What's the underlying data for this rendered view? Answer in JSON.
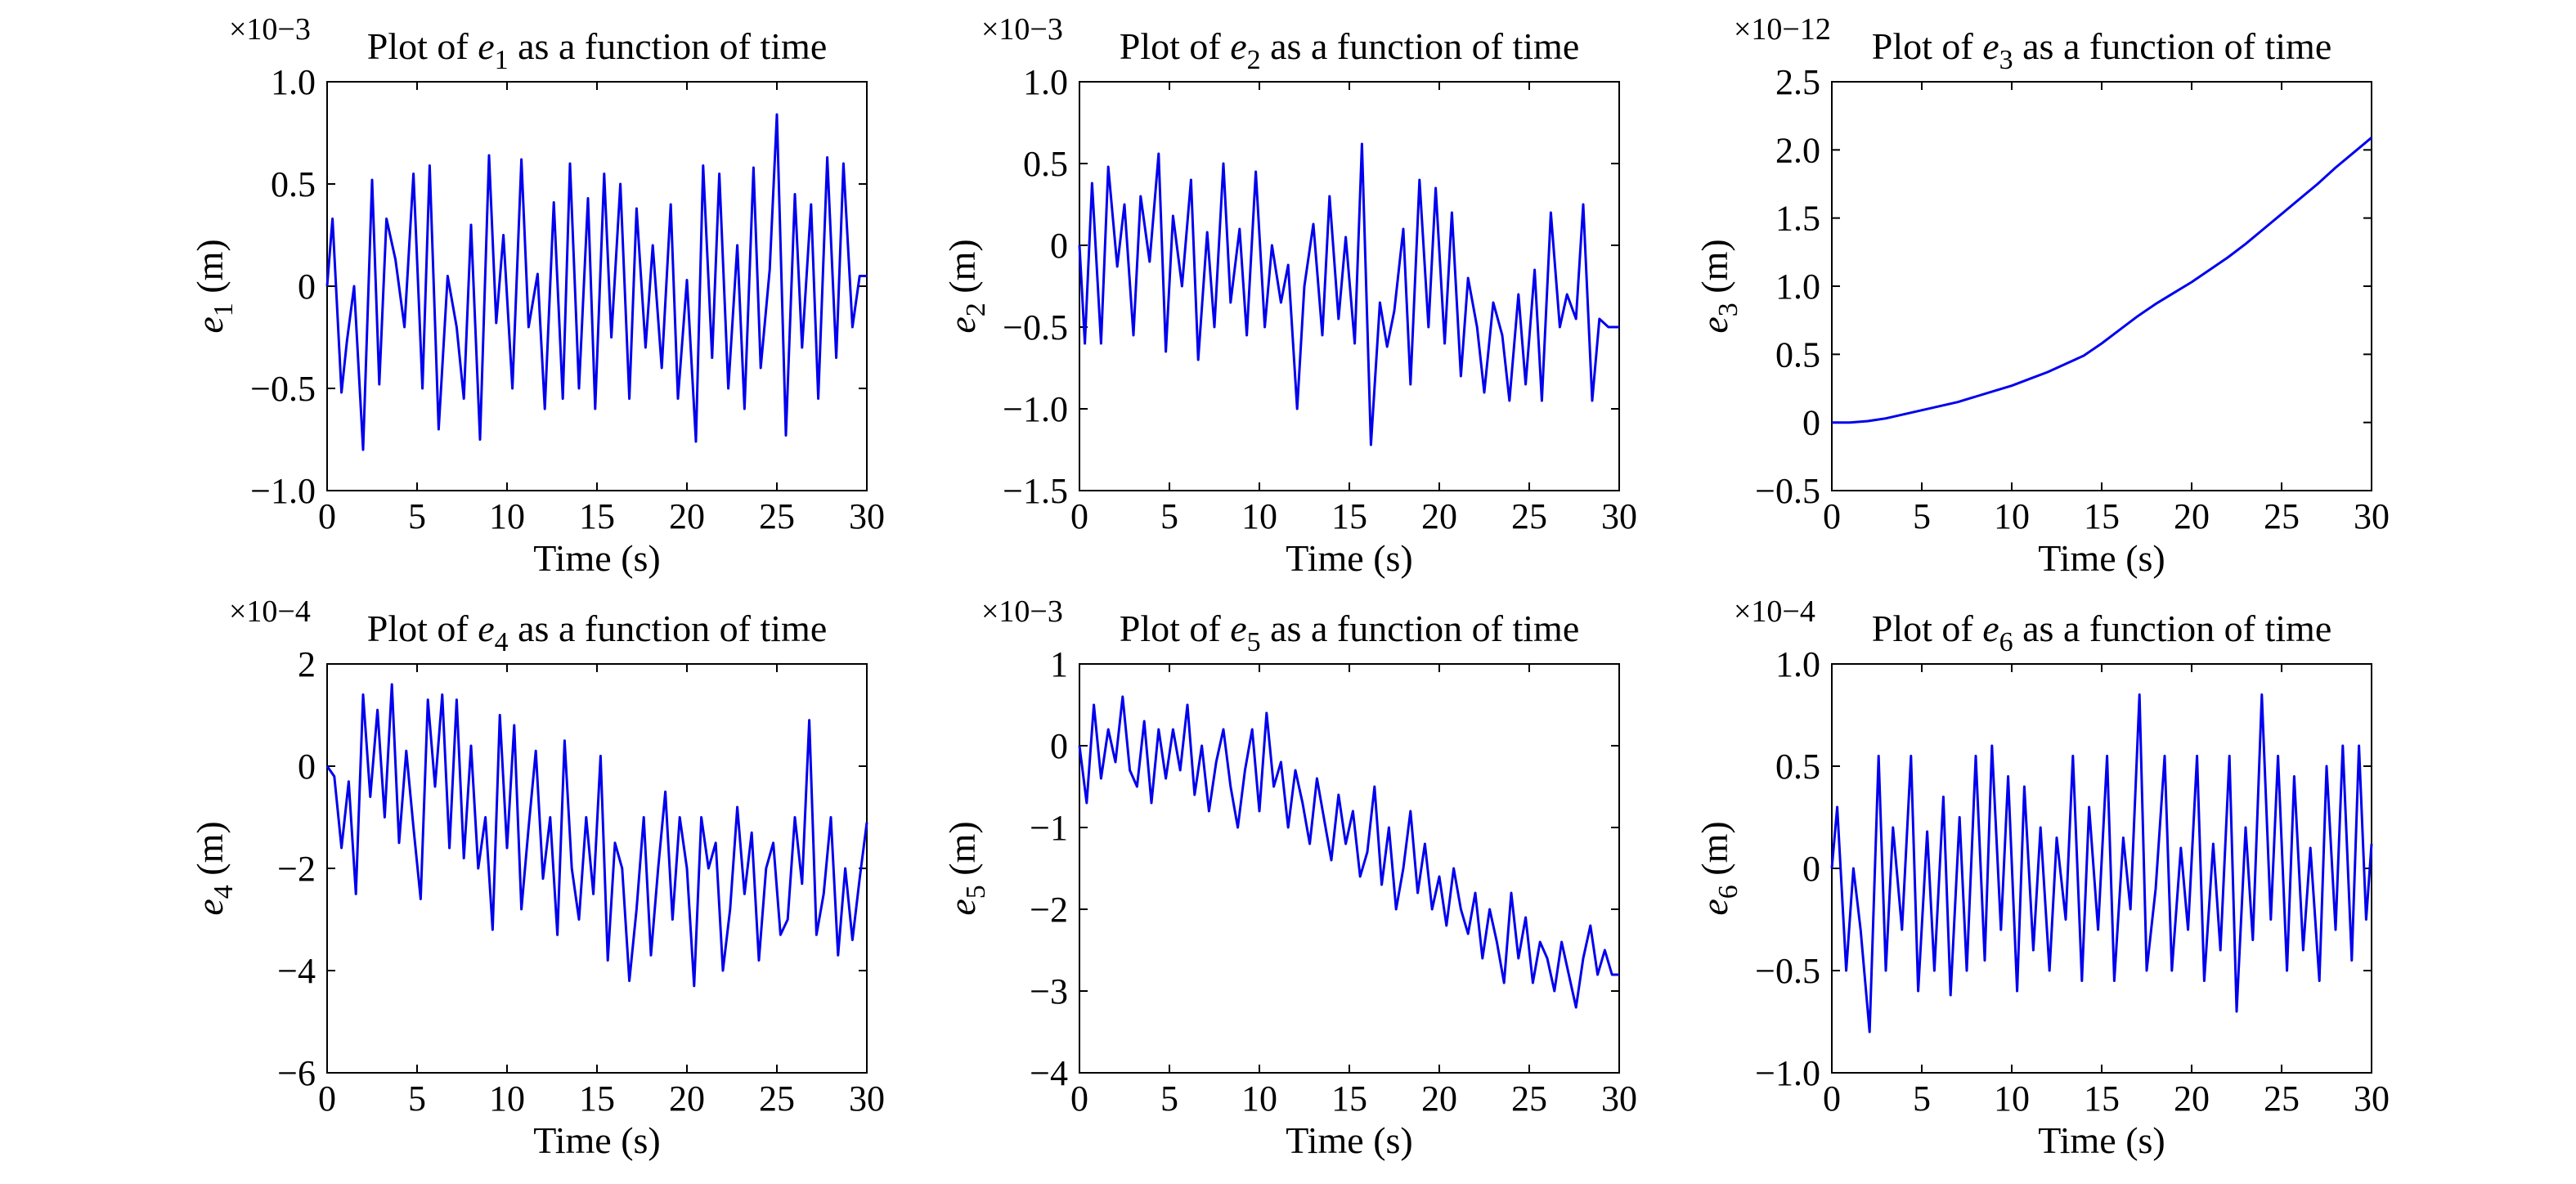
{
  "figure": {
    "line_color": "#0000EE",
    "subplot_titles": [
      [
        "Plot of ",
        "e",
        "1",
        " as a function of time"
      ],
      [
        "Plot of ",
        "e",
        "2",
        " as a function of time"
      ],
      [
        "Plot of ",
        "e",
        "3",
        " as a function of time"
      ],
      [
        "Plot of ",
        "e",
        "4",
        " as a function of time"
      ],
      [
        "Plot of ",
        "e",
        "5",
        " as a function of time"
      ],
      [
        "Plot of ",
        "e",
        "6",
        " as a function of time"
      ]
    ]
  },
  "chart_data": [
    {
      "type": "line",
      "title": "Plot of e1 as a function of time",
      "xlabel": "Time (s)",
      "ylabel": "e1 (m)",
      "y_multiplier": "×10−3",
      "xlim": [
        0,
        30
      ],
      "ylim": [
        -1.0,
        1.0
      ],
      "xticks": [
        0,
        5,
        10,
        15,
        20,
        25,
        30
      ],
      "xtick_labels": [
        "0",
        "5",
        "10",
        "15",
        "20",
        "25",
        "30"
      ],
      "yticks": [
        -1.0,
        -0.5,
        0,
        0.5,
        1.0
      ],
      "ytick_labels": [
        "−1.0",
        "−0.5",
        "0",
        "0.5",
        "1.0"
      ],
      "grid": false,
      "series": [
        {
          "color": "#0000EE",
          "x": [
            0,
            0.3,
            0.8,
            1.1,
            1.5,
            2.0,
            2.5,
            2.9,
            3.3,
            3.8,
            4.3,
            4.8,
            5.3,
            5.7,
            6.2,
            6.7,
            7.2,
            7.6,
            8.0,
            8.5,
            9.0,
            9.4,
            9.8,
            10.3,
            10.8,
            11.2,
            11.7,
            12.1,
            12.6,
            13.1,
            13.5,
            14.0,
            14.5,
            14.9,
            15.4,
            15.8,
            16.3,
            16.8,
            17.2,
            17.7,
            18.1,
            18.6,
            19.1,
            19.5,
            20.0,
            20.5,
            20.9,
            21.4,
            21.8,
            22.3,
            22.8,
            23.2,
            23.7,
            24.1,
            24.6,
            25.0,
            25.5,
            26.0,
            26.4,
            26.9,
            27.3,
            27.8,
            28.3,
            28.7,
            29.2,
            29.6,
            30
          ],
          "y": [
            0.0,
            0.33,
            -0.52,
            -0.27,
            0.0,
            -0.8,
            0.52,
            -0.48,
            0.33,
            0.13,
            -0.2,
            0.55,
            -0.5,
            0.59,
            -0.7,
            0.05,
            -0.2,
            -0.55,
            0.3,
            -0.75,
            0.64,
            -0.18,
            0.25,
            -0.5,
            0.62,
            -0.2,
            0.06,
            -0.6,
            0.41,
            -0.55,
            0.6,
            -0.5,
            0.43,
            -0.6,
            0.55,
            -0.25,
            0.5,
            -0.55,
            0.38,
            -0.3,
            0.2,
            -0.4,
            0.4,
            -0.55,
            0.03,
            -0.76,
            0.59,
            -0.35,
            0.55,
            -0.5,
            0.2,
            -0.6,
            0.58,
            -0.4,
            0.08,
            0.84,
            -0.73,
            0.45,
            -0.3,
            0.4,
            -0.55,
            0.63,
            -0.35,
            0.6,
            -0.2,
            0.05,
            0.05
          ]
        }
      ]
    },
    {
      "type": "line",
      "title": "Plot of e2 as a function of time",
      "xlabel": "Time (s)",
      "ylabel": "e2 (m)",
      "y_multiplier": "×10−3",
      "xlim": [
        0,
        30
      ],
      "ylim": [
        -1.5,
        1.0
      ],
      "xticks": [
        0,
        5,
        10,
        15,
        20,
        25,
        30
      ],
      "xtick_labels": [
        "0",
        "5",
        "10",
        "15",
        "20",
        "25",
        "30"
      ],
      "yticks": [
        -1.5,
        -1.0,
        -0.5,
        0,
        0.5,
        1.0
      ],
      "ytick_labels": [
        "−1.5",
        "−1.0",
        "−0.5",
        "0",
        "0.5",
        "1.0"
      ],
      "grid": false,
      "series": [
        {
          "color": "#0000EE",
          "x": [
            0,
            0.3,
            0.7,
            1.2,
            1.6,
            2.1,
            2.5,
            3.0,
            3.4,
            3.9,
            4.4,
            4.8,
            5.2,
            5.7,
            6.2,
            6.6,
            7.1,
            7.5,
            8.0,
            8.4,
            8.9,
            9.3,
            9.8,
            10.3,
            10.7,
            11.2,
            11.6,
            12.1,
            12.5,
            13.0,
            13.5,
            13.9,
            14.4,
            14.8,
            15.3,
            15.7,
            16.2,
            16.7,
            17.1,
            17.5,
            18.0,
            18.4,
            18.9,
            19.4,
            19.8,
            20.3,
            20.7,
            21.2,
            21.6,
            22.1,
            22.5,
            23.0,
            23.5,
            23.9,
            24.4,
            24.8,
            25.3,
            25.7,
            26.2,
            26.7,
            27.1,
            27.6,
            28.0,
            28.5,
            28.9,
            29.4,
            29.8,
            30
          ],
          "y": [
            0.0,
            -0.6,
            0.38,
            -0.6,
            0.48,
            -0.13,
            0.25,
            -0.55,
            0.3,
            -0.1,
            0.56,
            -0.65,
            0.18,
            -0.25,
            0.4,
            -0.7,
            0.08,
            -0.5,
            0.5,
            -0.35,
            0.1,
            -0.55,
            0.45,
            -0.5,
            0.0,
            -0.35,
            -0.12,
            -1.0,
            -0.25,
            0.13,
            -0.55,
            0.3,
            -0.45,
            0.05,
            -0.6,
            0.62,
            -1.22,
            -0.35,
            -0.62,
            -0.4,
            0.1,
            -0.85,
            0.4,
            -0.5,
            0.35,
            -0.6,
            0.2,
            -0.8,
            -0.2,
            -0.5,
            -0.9,
            -0.35,
            -0.55,
            -0.95,
            -0.3,
            -0.85,
            -0.15,
            -0.95,
            0.2,
            -0.5,
            -0.3,
            -0.45,
            0.25,
            -0.95,
            -0.45,
            -0.5,
            -0.5,
            -0.5
          ]
        }
      ]
    },
    {
      "type": "line",
      "title": "Plot of e3 as a function of time",
      "xlabel": "Time (s)",
      "ylabel": "e3 (m)",
      "y_multiplier": "×10−12",
      "xlim": [
        0,
        30
      ],
      "ylim": [
        -0.5,
        2.5
      ],
      "xticks": [
        0,
        5,
        10,
        15,
        20,
        25,
        30
      ],
      "xtick_labels": [
        "0",
        "5",
        "10",
        "15",
        "20",
        "25",
        "30"
      ],
      "yticks": [
        -0.5,
        0,
        0.5,
        1.0,
        1.5,
        2.0,
        2.5
      ],
      "ytick_labels": [
        "−0.5",
        "0",
        "0.5",
        "1.0",
        "1.5",
        "2.0",
        "2.5"
      ],
      "grid": false,
      "series": [
        {
          "color": "#0000EE",
          "x": [
            0,
            1,
            2,
            3,
            4,
            5,
            6,
            7,
            8,
            9,
            10,
            11,
            12,
            13,
            14,
            15,
            16,
            17,
            18,
            19,
            20,
            21,
            22,
            23,
            24,
            25,
            26,
            27,
            28,
            29,
            30
          ],
          "y": [
            0.0,
            0.0,
            0.01,
            0.03,
            0.06,
            0.09,
            0.12,
            0.15,
            0.19,
            0.23,
            0.27,
            0.32,
            0.37,
            0.43,
            0.49,
            0.58,
            0.68,
            0.78,
            0.87,
            0.95,
            1.03,
            1.12,
            1.21,
            1.31,
            1.42,
            1.53,
            1.64,
            1.75,
            1.87,
            1.98,
            2.09
          ]
        }
      ]
    },
    {
      "type": "line",
      "title": "Plot of e4 as a function of time",
      "xlabel": "Time (s)",
      "ylabel": "e4 (m)",
      "y_multiplier": "×10−4",
      "xlim": [
        0,
        30
      ],
      "ylim": [
        -6,
        2
      ],
      "xticks": [
        0,
        5,
        10,
        15,
        20,
        25,
        30
      ],
      "xtick_labels": [
        "0",
        "5",
        "10",
        "15",
        "20",
        "25",
        "30"
      ],
      "yticks": [
        -6,
        -4,
        -2,
        0,
        2
      ],
      "ytick_labels": [
        "−6",
        "−4",
        "−2",
        "0",
        "2"
      ],
      "grid": false,
      "series": [
        {
          "color": "#0000EE",
          "x": [
            0,
            0.4,
            0.8,
            1.2,
            1.6,
            2.0,
            2.4,
            2.8,
            3.2,
            3.6,
            4.0,
            4.4,
            4.8,
            5.2,
            5.6,
            6.0,
            6.4,
            6.8,
            7.2,
            7.6,
            8.0,
            8.4,
            8.8,
            9.2,
            9.6,
            10.0,
            10.4,
            10.8,
            11.2,
            11.6,
            12.0,
            12.4,
            12.8,
            13.2,
            13.6,
            14.0,
            14.4,
            14.8,
            15.2,
            15.6,
            16.0,
            16.4,
            16.8,
            17.2,
            17.6,
            18.0,
            18.4,
            18.8,
            19.2,
            19.6,
            20.0,
            20.4,
            20.8,
            21.2,
            21.6,
            22.0,
            22.4,
            22.8,
            23.2,
            23.6,
            24.0,
            24.4,
            24.8,
            25.2,
            25.6,
            26.0,
            26.4,
            26.8,
            27.2,
            27.6,
            28.0,
            28.4,
            28.8,
            29.2,
            29.6,
            30
          ],
          "y": [
            0,
            -0.2,
            -1.6,
            -0.3,
            -2.5,
            1.4,
            -0.6,
            1.1,
            -1.0,
            1.6,
            -1.5,
            0.3,
            -1.2,
            -2.6,
            1.3,
            -0.4,
            1.4,
            -1.6,
            1.3,
            -1.8,
            0.4,
            -2.0,
            -1.0,
            -3.2,
            1.0,
            -1.6,
            0.8,
            -2.8,
            -1.2,
            0.3,
            -2.2,
            -1.0,
            -3.3,
            0.5,
            -2.0,
            -3.0,
            -1.0,
            -2.5,
            0.2,
            -3.8,
            -1.5,
            -2.0,
            -4.2,
            -2.8,
            -1.0,
            -3.7,
            -2.0,
            -0.5,
            -3.0,
            -1.0,
            -2.0,
            -4.3,
            -1.0,
            -2.0,
            -1.5,
            -4.0,
            -2.8,
            -0.8,
            -2.5,
            -1.3,
            -3.8,
            -2.0,
            -1.5,
            -3.3,
            -3.0,
            -1.0,
            -2.3,
            0.9,
            -3.3,
            -2.5,
            -1.0,
            -3.7,
            -2.0,
            -3.4,
            -2.2,
            -1.1
          ]
        }
      ]
    },
    {
      "type": "line",
      "title": "Plot of e5 as a function of time",
      "xlabel": "Time (s)",
      "ylabel": "e5 (m)",
      "y_multiplier": "×10−3",
      "xlim": [
        0,
        30
      ],
      "ylim": [
        -4,
        1
      ],
      "xticks": [
        0,
        5,
        10,
        15,
        20,
        25,
        30
      ],
      "xtick_labels": [
        "0",
        "5",
        "10",
        "15",
        "20",
        "25",
        "30"
      ],
      "yticks": [
        -4,
        -3,
        -2,
        -1,
        0,
        1
      ],
      "ytick_labels": [
        "−4",
        "−3",
        "−2",
        "−1",
        "0",
        "1"
      ],
      "grid": false,
      "series": [
        {
          "color": "#0000EE",
          "x": [
            0,
            0.4,
            0.8,
            1.2,
            1.6,
            2.0,
            2.4,
            2.8,
            3.2,
            3.6,
            4.0,
            4.4,
            4.8,
            5.2,
            5.6,
            6.0,
            6.4,
            6.8,
            7.2,
            7.6,
            8.0,
            8.4,
            8.8,
            9.2,
            9.6,
            10.0,
            10.4,
            10.8,
            11.2,
            11.6,
            12.0,
            12.4,
            12.8,
            13.2,
            13.6,
            14.0,
            14.4,
            14.8,
            15.2,
            15.6,
            16.0,
            16.4,
            16.8,
            17.2,
            17.6,
            18.0,
            18.4,
            18.8,
            19.2,
            19.6,
            20.0,
            20.4,
            20.8,
            21.2,
            21.6,
            22.0,
            22.4,
            22.8,
            23.2,
            23.6,
            24.0,
            24.4,
            24.8,
            25.2,
            25.6,
            26.0,
            26.4,
            26.8,
            27.2,
            27.6,
            28.0,
            28.4,
            28.8,
            29.2,
            29.6,
            30
          ],
          "y": [
            0,
            -0.7,
            0.5,
            -0.4,
            0.2,
            -0.2,
            0.6,
            -0.3,
            -0.5,
            0.3,
            -0.7,
            0.2,
            -0.4,
            0.2,
            -0.3,
            0.5,
            -0.6,
            0.0,
            -0.8,
            -0.2,
            0.2,
            -0.5,
            -1.0,
            -0.3,
            0.2,
            -0.8,
            0.4,
            -0.5,
            -0.2,
            -1.0,
            -0.3,
            -0.7,
            -1.2,
            -0.4,
            -0.9,
            -1.4,
            -0.6,
            -1.2,
            -0.8,
            -1.6,
            -1.3,
            -0.5,
            -1.7,
            -1.0,
            -2.0,
            -1.5,
            -0.8,
            -1.8,
            -1.2,
            -2.0,
            -1.6,
            -2.2,
            -1.5,
            -2.0,
            -2.3,
            -1.8,
            -2.6,
            -2.0,
            -2.4,
            -2.9,
            -1.8,
            -2.6,
            -2.1,
            -2.9,
            -2.4,
            -2.6,
            -3.0,
            -2.4,
            -2.8,
            -3.2,
            -2.6,
            -2.2,
            -2.8,
            -2.5,
            -2.8,
            -2.8
          ]
        }
      ]
    },
    {
      "type": "line",
      "title": "Plot of e6 as a function of time",
      "xlabel": "Time (s)",
      "ylabel": "e6 (m)",
      "y_multiplier": "×10−4",
      "xlim": [
        0,
        30
      ],
      "ylim": [
        -1.0,
        1.0
      ],
      "xticks": [
        0,
        5,
        10,
        15,
        20,
        25,
        30
      ],
      "xtick_labels": [
        "0",
        "5",
        "10",
        "15",
        "20",
        "25",
        "30"
      ],
      "yticks": [
        -1.0,
        -0.5,
        0,
        0.5,
        1.0
      ],
      "ytick_labels": [
        "−1.0",
        "−0.5",
        "0",
        "0.5",
        "1.0"
      ],
      "grid": false,
      "series": [
        {
          "color": "#0000EE",
          "x": [
            0,
            0.3,
            0.8,
            1.2,
            1.6,
            2.1,
            2.6,
            3.0,
            3.4,
            3.9,
            4.4,
            4.8,
            5.3,
            5.7,
            6.2,
            6.6,
            7.1,
            7.5,
            8.0,
            8.5,
            8.9,
            9.4,
            9.8,
            10.3,
            10.7,
            11.2,
            11.6,
            12.1,
            12.5,
            13.0,
            13.4,
            13.9,
            14.3,
            14.8,
            15.3,
            15.7,
            16.2,
            16.6,
            17.1,
            17.5,
            18.0,
            18.5,
            18.9,
            19.4,
            19.8,
            20.3,
            20.7,
            21.2,
            21.6,
            22.1,
            22.5,
            23.0,
            23.4,
            23.9,
            24.4,
            24.8,
            25.3,
            25.7,
            26.2,
            26.6,
            27.1,
            27.5,
            28.0,
            28.4,
            28.9,
            29.3,
            29.7,
            30
          ],
          "y": [
            0.0,
            0.3,
            -0.5,
            0.0,
            -0.3,
            -0.8,
            0.55,
            -0.5,
            0.2,
            -0.3,
            0.55,
            -0.6,
            0.18,
            -0.5,
            0.35,
            -0.62,
            0.25,
            -0.5,
            0.55,
            -0.45,
            0.6,
            -0.3,
            0.45,
            -0.6,
            0.4,
            -0.4,
            0.2,
            -0.5,
            0.15,
            -0.25,
            0.55,
            -0.55,
            0.3,
            -0.3,
            0.55,
            -0.55,
            0.15,
            -0.2,
            0.85,
            -0.5,
            -0.1,
            0.55,
            -0.5,
            0.1,
            -0.3,
            0.55,
            -0.55,
            0.12,
            -0.4,
            0.55,
            -0.7,
            0.2,
            -0.35,
            0.85,
            -0.25,
            0.55,
            -0.5,
            0.45,
            -0.4,
            0.1,
            -0.55,
            0.5,
            -0.3,
            0.6,
            -0.45,
            0.6,
            -0.25,
            0.12
          ]
        }
      ]
    }
  ]
}
